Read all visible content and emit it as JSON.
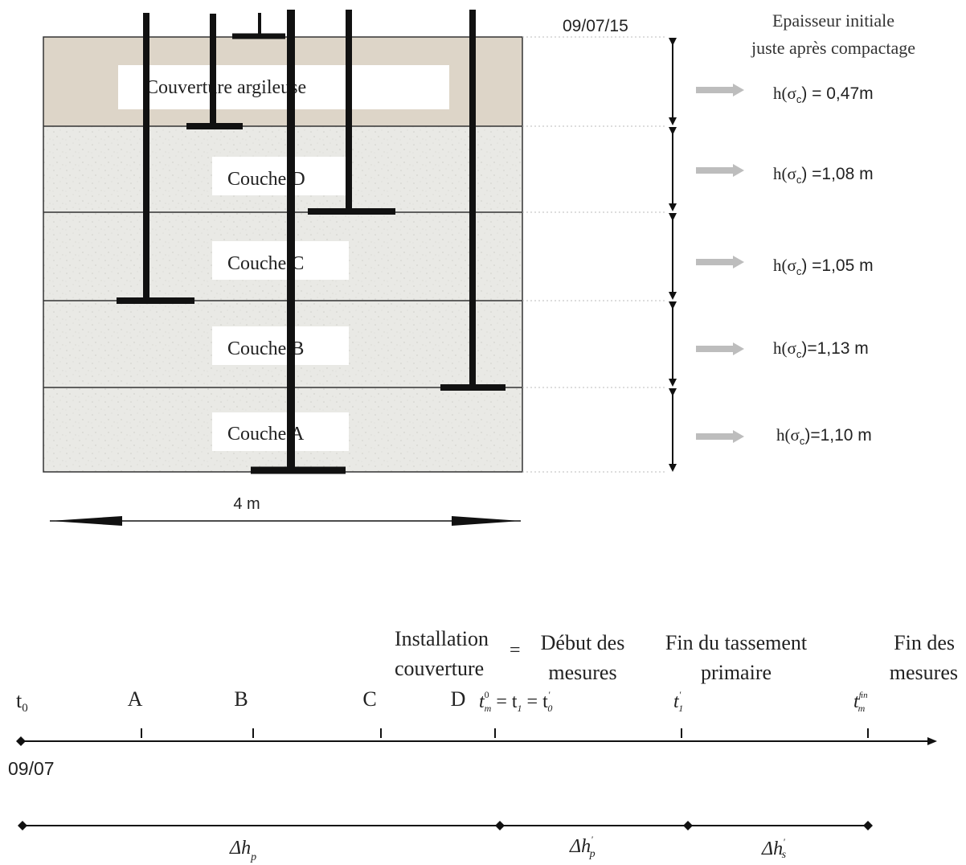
{
  "cross_section": {
    "date": "09/07/15",
    "header_line1": "Epaisseur initiale",
    "header_line2": "juste après compactage",
    "width_label": "4 m",
    "layers": [
      {
        "name": "Couverture argileuse",
        "h_prefix": "h(σ",
        "h_sub": "c",
        "h_value": ") = 0,47m"
      },
      {
        "name": "Couche D",
        "h_prefix": "h(σ",
        "h_sub": "c",
        "h_value": ") =1,08 m"
      },
      {
        "name": "Couche C",
        "h_prefix": "h(σ",
        "h_sub": "c",
        "h_value": ")  =1,05 m"
      },
      {
        "name": "Couche B",
        "h_prefix": "h(σ",
        "h_sub": "c",
        "h_value": ")=1,13 m"
      },
      {
        "name": "Couche A",
        "h_prefix": "h(σ",
        "h_sub": "c",
        "h_value": ")=1,10 m"
      }
    ],
    "colors": {
      "cover_fill": "#ddd5c8",
      "layer_fill": "#e8e8e4",
      "rod": "#111111",
      "hint_arrow": "#bdbdbd"
    }
  },
  "timeline": {
    "header_installation_line1": "Installation",
    "header_installation_line2": "couverture",
    "equals_sign": "=",
    "header_debut_line1": "Début des",
    "header_debut_line2": "mesures",
    "header_fin_tassement_line1": "Fin du tassement",
    "header_fin_tassement_line2": "primaire",
    "header_fin_mesures_line1": "Fin des",
    "header_fin_mesures_line2": "mesures",
    "t0_base": "t",
    "t0_sub": "0",
    "labels": [
      "A",
      "B",
      "C",
      "D"
    ],
    "tm0_base": "t",
    "tm0_sub": "m",
    "tm0_sup": "0",
    "tm0_eq1": " = t",
    "tm0_eq1_sub": "1",
    "tm0_eq2": " = t",
    "tm0_eq2_sub": "0",
    "tm0_eq2_sup": "'",
    "t1p_base": "t",
    "t1p_sub": "1",
    "t1p_sup": "'",
    "tmfin_base": "t",
    "tmfin_sub": "m",
    "tmfin_sup": "ﬁn",
    "start_date": "09/07",
    "delta_hp": "Δh",
    "delta_hp_sub": "p",
    "delta_hp_prime": "Δh",
    "delta_hp_prime_sub": "p",
    "delta_hp_prime_sup": "'",
    "delta_hs_prime": "Δh",
    "delta_hs_prime_sub": "s",
    "delta_hs_prime_sup": "'"
  }
}
